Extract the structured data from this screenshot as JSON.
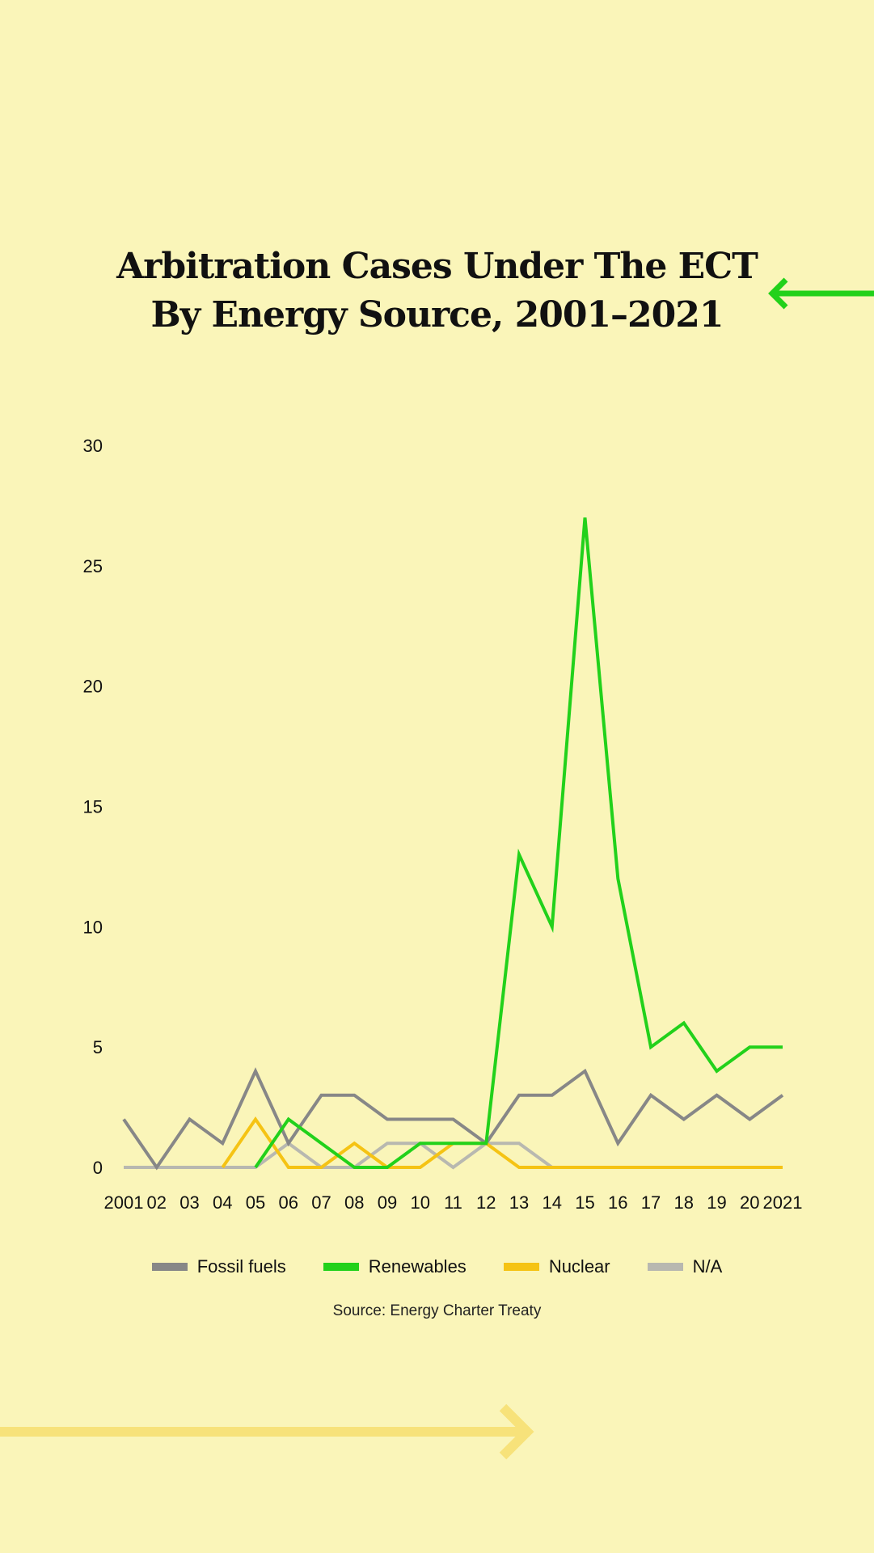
{
  "title_line1": "Arbitration Cases Under The ECT",
  "title_line2": "By Energy Source, 2001–2021",
  "source": "Source: Energy Charter Treaty",
  "colors": {
    "background": "#faf5b9",
    "fossil": "#878787",
    "renewables": "#22d11b",
    "nuclear": "#f5c314",
    "na": "#b8b8b0",
    "decor_arrow_top": "#22d11b",
    "decor_arrow_bottom": "#f7e27a"
  },
  "chart_data": {
    "type": "line",
    "categories": [
      "2001",
      "02",
      "03",
      "04",
      "05",
      "06",
      "07",
      "08",
      "09",
      "10",
      "11",
      "12",
      "13",
      "14",
      "15",
      "16",
      "17",
      "18",
      "19",
      "20",
      "2021"
    ],
    "series": [
      {
        "name": "Fossil fuels",
        "color": "#878787",
        "values": [
          2,
          0,
          2,
          1,
          4,
          1,
          3,
          3,
          2,
          2,
          2,
          1,
          3,
          3,
          4,
          1,
          3,
          2,
          3,
          2,
          3
        ]
      },
      {
        "name": "Renewables",
        "color": "#22d11b",
        "values": [
          null,
          null,
          null,
          null,
          0,
          2,
          1,
          0,
          0,
          1,
          1,
          1,
          13,
          10,
          27,
          12,
          5,
          6,
          4,
          5,
          5
        ]
      },
      {
        "name": "Nuclear",
        "color": "#f5c314",
        "values": [
          null,
          null,
          null,
          0,
          2,
          0,
          0,
          1,
          0,
          0,
          1,
          1,
          0,
          0,
          0,
          0,
          0,
          0,
          0,
          0,
          0
        ]
      },
      {
        "name": "N/A",
        "color": "#b8b8b0",
        "values": [
          0,
          0,
          0,
          0,
          0,
          1,
          0,
          0,
          1,
          1,
          0,
          1,
          1,
          0,
          0,
          0,
          0,
          0,
          0,
          0,
          0
        ]
      }
    ],
    "yticks": [
      0,
      5,
      10,
      15,
      20,
      25,
      30
    ],
    "ylim": [
      0,
      30
    ],
    "grid": false,
    "legend_position": "bottom"
  }
}
